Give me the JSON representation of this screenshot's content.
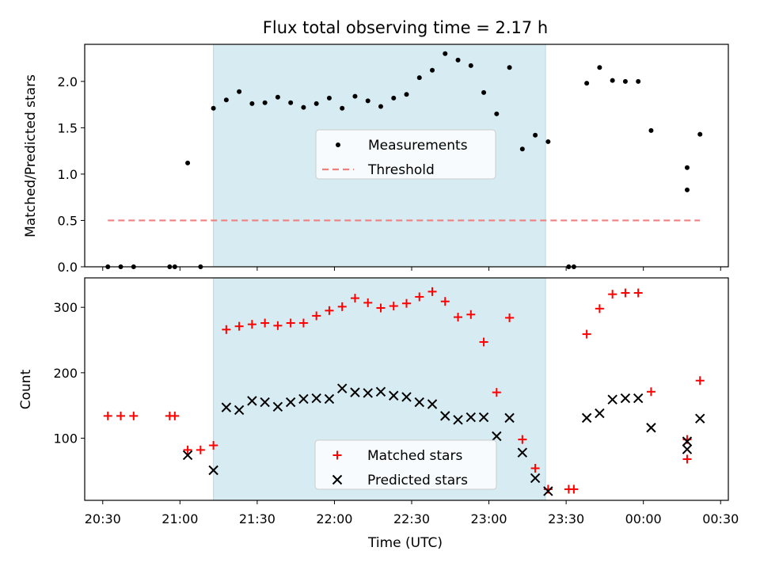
{
  "chart_data": [
    {
      "type": "scatter",
      "title": "Flux total observing time = 2.17 h",
      "xlabel": "",
      "ylabel": "Matched/Predicted stars",
      "ylim": [
        0,
        2.4
      ],
      "yticks": [
        "0.0",
        "0.5",
        "1.0",
        "1.5",
        "2.0"
      ],
      "shaded_span": [
        "21:13",
        "23:22"
      ],
      "legend_position": "center",
      "series": [
        {
          "name": "Measurements",
          "marker": "dot",
          "color": "#000000",
          "points": [
            [
              "20:32",
              0.0
            ],
            [
              "20:37",
              0.0
            ],
            [
              "20:42",
              0.0
            ],
            [
              "20:56",
              0.0
            ],
            [
              "20:58",
              0.0
            ],
            [
              "21:03",
              1.12
            ],
            [
              "21:08",
              0.0
            ],
            [
              "21:13",
              1.71
            ],
            [
              "21:18",
              1.8
            ],
            [
              "21:23",
              1.89
            ],
            [
              "21:28",
              1.76
            ],
            [
              "21:33",
              1.77
            ],
            [
              "21:38",
              1.83
            ],
            [
              "21:43",
              1.77
            ],
            [
              "21:48",
              1.72
            ],
            [
              "21:53",
              1.76
            ],
            [
              "21:58",
              1.82
            ],
            [
              "22:03",
              1.71
            ],
            [
              "22:08",
              1.84
            ],
            [
              "22:13",
              1.79
            ],
            [
              "22:18",
              1.73
            ],
            [
              "22:23",
              1.82
            ],
            [
              "22:28",
              1.86
            ],
            [
              "22:33",
              2.04
            ],
            [
              "22:38",
              2.12
            ],
            [
              "22:43",
              2.3
            ],
            [
              "22:48",
              2.23
            ],
            [
              "22:53",
              2.17
            ],
            [
              "22:58",
              1.88
            ],
            [
              "23:03",
              1.65
            ],
            [
              "23:08",
              2.15
            ],
            [
              "23:13",
              1.27
            ],
            [
              "23:18",
              1.42
            ],
            [
              "23:23",
              1.35
            ],
            [
              "23:31",
              0.0
            ],
            [
              "23:33",
              0.0
            ],
            [
              "23:38",
              1.98
            ],
            [
              "23:43",
              2.15
            ],
            [
              "23:48",
              2.01
            ],
            [
              "23:53",
              2.0
            ],
            [
              "23:58",
              2.0
            ],
            [
              "00:03",
              1.47
            ],
            [
              "00:17",
              0.83
            ],
            [
              "00:17",
              1.07
            ],
            [
              "00:22",
              1.43
            ]
          ]
        },
        {
          "name": "Threshold",
          "marker": "dashed-line",
          "color": "#f08080",
          "points": [
            [
              "20:32",
              0.5
            ],
            [
              "00:22",
              0.5
            ]
          ]
        }
      ]
    },
    {
      "type": "scatter",
      "title": "",
      "xlabel": "Time (UTC)",
      "ylabel": "Count",
      "ylim": [
        5,
        345
      ],
      "yticks": [
        "100",
        "200",
        "300"
      ],
      "xlim": [
        "20:23",
        "00:33"
      ],
      "xticks": [
        "20:30",
        "21:00",
        "21:30",
        "22:00",
        "22:30",
        "23:00",
        "23:30",
        "00:00",
        "00:30"
      ],
      "shaded_span": [
        "21:13",
        "23:22"
      ],
      "legend_position": "lower center",
      "series": [
        {
          "name": "Matched stars",
          "marker": "plus",
          "color": "#ff0000",
          "points": [
            [
              "20:32",
              134
            ],
            [
              "20:37",
              134
            ],
            [
              "20:42",
              134
            ],
            [
              "20:56",
              134
            ],
            [
              "20:58",
              134
            ],
            [
              "21:03",
              82
            ],
            [
              "21:08",
              82
            ],
            [
              "21:13",
              89
            ],
            [
              "21:18",
              266
            ],
            [
              "21:23",
              271
            ],
            [
              "21:28",
              274
            ],
            [
              "21:33",
              276
            ],
            [
              "21:38",
              272
            ],
            [
              "21:43",
              276
            ],
            [
              "21:48",
              276
            ],
            [
              "21:53",
              287
            ],
            [
              "21:58",
              295
            ],
            [
              "22:03",
              301
            ],
            [
              "22:08",
              314
            ],
            [
              "22:13",
              307
            ],
            [
              "22:18",
              299
            ],
            [
              "22:23",
              302
            ],
            [
              "22:28",
              306
            ],
            [
              "22:33",
              316
            ],
            [
              "22:38",
              324
            ],
            [
              "22:43",
              309
            ],
            [
              "22:48",
              285
            ],
            [
              "22:53",
              289
            ],
            [
              "22:58",
              247
            ],
            [
              "23:03",
              170
            ],
            [
              "23:08",
              284
            ],
            [
              "23:13",
              98
            ],
            [
              "23:18",
              54
            ],
            [
              "23:23",
              22
            ],
            [
              "23:31",
              22
            ],
            [
              "23:33",
              22
            ],
            [
              "23:38",
              259
            ],
            [
              "23:43",
              298
            ],
            [
              "23:48",
              320
            ],
            [
              "23:53",
              322
            ],
            [
              "23:58",
              322
            ],
            [
              "00:03",
              171
            ],
            [
              "00:17",
              68
            ],
            [
              "00:17",
              98
            ],
            [
              "00:22",
              188
            ]
          ]
        },
        {
          "name": "Predicted stars",
          "marker": "x",
          "color": "#000000",
          "points": [
            [
              "21:03",
              74
            ],
            [
              "21:13",
              51
            ],
            [
              "21:18",
              147
            ],
            [
              "21:23",
              143
            ],
            [
              "21:28",
              157
            ],
            [
              "21:33",
              155
            ],
            [
              "21:38",
              148
            ],
            [
              "21:43",
              155
            ],
            [
              "21:48",
              160
            ],
            [
              "21:53",
              161
            ],
            [
              "21:58",
              160
            ],
            [
              "22:03",
              176
            ],
            [
              "22:08",
              170
            ],
            [
              "22:13",
              169
            ],
            [
              "22:18",
              171
            ],
            [
              "22:23",
              165
            ],
            [
              "22:28",
              163
            ],
            [
              "22:33",
              155
            ],
            [
              "22:38",
              152
            ],
            [
              "22:43",
              134
            ],
            [
              "22:48",
              128
            ],
            [
              "22:53",
              132
            ],
            [
              "22:58",
              132
            ],
            [
              "23:03",
              103
            ],
            [
              "23:08",
              131
            ],
            [
              "23:13",
              78
            ],
            [
              "23:18",
              39
            ],
            [
              "23:23",
              19
            ],
            [
              "23:38",
              131
            ],
            [
              "23:43",
              138
            ],
            [
              "23:48",
              159
            ],
            [
              "23:53",
              161
            ],
            [
              "23:58",
              161
            ],
            [
              "00:03",
              116
            ],
            [
              "00:17",
              83
            ],
            [
              "00:17",
              95
            ],
            [
              "00:22",
              130
            ]
          ]
        }
      ]
    }
  ],
  "colors": {
    "shade": "#add8e6",
    "axes": "#000000"
  }
}
